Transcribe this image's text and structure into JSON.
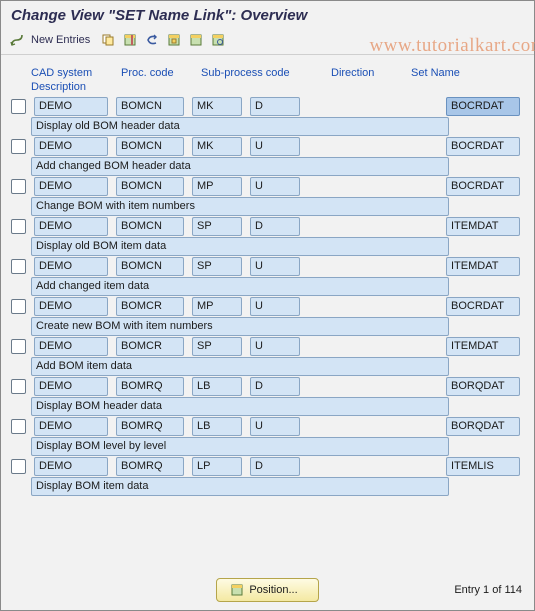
{
  "title": "Change View \"SET Name Link\": Overview",
  "watermark": "www.tutorialkart.com",
  "toolbar": {
    "new_entries": "New Entries"
  },
  "columns": {
    "cad": "CAD system",
    "proc": "Proc. code",
    "sub": "Sub-process code",
    "dir": "Direction",
    "setname": "Set Name",
    "desc": "Description"
  },
  "rows": [
    {
      "cad": "DEMO",
      "proc": "BOMCN",
      "sub": "MK",
      "dir": "D",
      "set": "BOCRDAT",
      "sel": true,
      "desc": "Display old BOM header data"
    },
    {
      "cad": "DEMO",
      "proc": "BOMCN",
      "sub": "MK",
      "dir": "U",
      "set": "BOCRDAT",
      "desc": "Add changed BOM header data"
    },
    {
      "cad": "DEMO",
      "proc": "BOMCN",
      "sub": "MP",
      "dir": "U",
      "set": "BOCRDAT",
      "desc": "Change BOM with item numbers"
    },
    {
      "cad": "DEMO",
      "proc": "BOMCN",
      "sub": "SP",
      "dir": "D",
      "set": "ITEMDAT",
      "desc": "Display old BOM item data"
    },
    {
      "cad": "DEMO",
      "proc": "BOMCN",
      "sub": "SP",
      "dir": "U",
      "set": "ITEMDAT",
      "desc": "Add changed item data"
    },
    {
      "cad": "DEMO",
      "proc": "BOMCR",
      "sub": "MP",
      "dir": "U",
      "set": "BOCRDAT",
      "desc": "Create new BOM with item numbers"
    },
    {
      "cad": "DEMO",
      "proc": "BOMCR",
      "sub": "SP",
      "dir": "U",
      "set": "ITEMDAT",
      "desc": "Add BOM item data"
    },
    {
      "cad": "DEMO",
      "proc": "BOMRQ",
      "sub": "LB",
      "dir": "D",
      "set": "BORQDAT",
      "desc": "Display BOM header data"
    },
    {
      "cad": "DEMO",
      "proc": "BOMRQ",
      "sub": "LB",
      "dir": "U",
      "set": "BORQDAT",
      "desc": "Display BOM level by level"
    },
    {
      "cad": "DEMO",
      "proc": "BOMRQ",
      "sub": "LP",
      "dir": "D",
      "set": "ITEMLIS",
      "desc": "Display BOM item data"
    }
  ],
  "footer": {
    "position": "Position...",
    "entry": "Entry 1 of 114"
  }
}
